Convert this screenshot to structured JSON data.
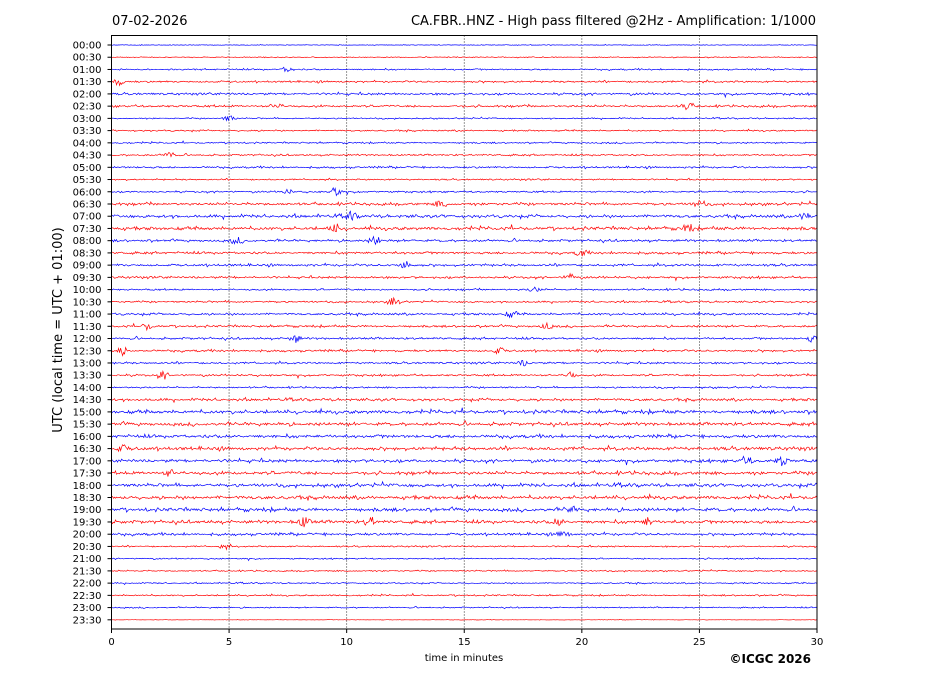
{
  "chart_data": {
    "type": "line",
    "date": "07-02-2026",
    "title": "CA.FBR..HNZ - High pass filtered @2Hz - Amplification: 1/1000",
    "ylabel": "UTC (local time = UTC + 01:00)",
    "xlabel": "time in minutes",
    "copyright": "©ICGC 2026",
    "xlim": [
      0,
      30
    ],
    "x_ticks": [
      "0",
      "5",
      "10",
      "15",
      "20",
      "25",
      "30"
    ],
    "x_tick_values": [
      0,
      5,
      10,
      15,
      20,
      25,
      30
    ],
    "grid": "vertical dotted",
    "colors": {
      "odd": "#0000ff",
      "even": "#ff0000"
    },
    "rows": [
      {
        "label": "00:00",
        "level": 0.15
      },
      {
        "label": "00:30",
        "level": 0.2
      },
      {
        "label": "01:00",
        "level": 0.35
      },
      {
        "label": "01:30",
        "level": 0.45
      },
      {
        "label": "02:00",
        "level": 0.5
      },
      {
        "label": "02:30",
        "level": 0.5
      },
      {
        "label": "03:00",
        "level": 0.3
      },
      {
        "label": "03:30",
        "level": 0.35
      },
      {
        "label": "04:00",
        "level": 0.35
      },
      {
        "label": "04:30",
        "level": 0.4
      },
      {
        "label": "05:00",
        "level": 0.45
      },
      {
        "label": "05:30",
        "level": 0.35
      },
      {
        "label": "06:00",
        "level": 0.4
      },
      {
        "label": "06:30",
        "level": 0.6
      },
      {
        "label": "07:00",
        "level": 0.7
      },
      {
        "label": "07:30",
        "level": 0.75
      },
      {
        "label": "08:00",
        "level": 0.55
      },
      {
        "label": "08:30",
        "level": 0.55
      },
      {
        "label": "09:00",
        "level": 0.55
      },
      {
        "label": "09:30",
        "level": 0.5
      },
      {
        "label": "10:00",
        "level": 0.4
      },
      {
        "label": "10:30",
        "level": 0.4
      },
      {
        "label": "11:00",
        "level": 0.5
      },
      {
        "label": "11:30",
        "level": 0.5
      },
      {
        "label": "12:00",
        "level": 0.5
      },
      {
        "label": "12:30",
        "level": 0.5
      },
      {
        "label": "13:00",
        "level": 0.45
      },
      {
        "label": "13:30",
        "level": 0.45
      },
      {
        "label": "14:00",
        "level": 0.4
      },
      {
        "label": "14:30",
        "level": 0.6
      },
      {
        "label": "15:00",
        "level": 0.8
      },
      {
        "label": "15:30",
        "level": 0.75
      },
      {
        "label": "16:00",
        "level": 0.75
      },
      {
        "label": "16:30",
        "level": 0.8
      },
      {
        "label": "17:00",
        "level": 0.7
      },
      {
        "label": "17:30",
        "level": 0.75
      },
      {
        "label": "18:00",
        "level": 0.75
      },
      {
        "label": "18:30",
        "level": 0.8
      },
      {
        "label": "19:00",
        "level": 0.8
      },
      {
        "label": "19:30",
        "level": 0.75
      },
      {
        "label": "20:00",
        "level": 0.6
      },
      {
        "label": "20:30",
        "level": 0.35
      },
      {
        "label": "21:00",
        "level": 0.3
      },
      {
        "label": "21:30",
        "level": 0.3
      },
      {
        "label": "22:00",
        "level": 0.3
      },
      {
        "label": "22:30",
        "level": 0.35
      },
      {
        "label": "23:00",
        "level": 0.3
      },
      {
        "label": "23:30",
        "level": 0.1
      }
    ],
    "events": [
      {
        "row": "01:00",
        "min": 7.5,
        "amp": 0.6
      },
      {
        "row": "01:30",
        "min": 0.3,
        "amp": 0.7
      },
      {
        "row": "02:30",
        "min": 7.0,
        "amp": 0.7
      },
      {
        "row": "02:30",
        "min": 24.5,
        "amp": 0.8
      },
      {
        "row": "03:00",
        "min": 5.0,
        "amp": 0.6
      },
      {
        "row": "04:30",
        "min": 2.5,
        "amp": 0.6
      },
      {
        "row": "06:00",
        "min": 9.5,
        "amp": 1.0
      },
      {
        "row": "06:00",
        "min": 7.5,
        "amp": 0.6
      },
      {
        "row": "06:30",
        "min": 14.0,
        "amp": 0.7
      },
      {
        "row": "06:30",
        "min": 25.0,
        "amp": 0.8
      },
      {
        "row": "07:00",
        "min": 29.5,
        "amp": 0.8
      },
      {
        "row": "07:00",
        "min": 10.2,
        "amp": 0.8
      },
      {
        "row": "07:30",
        "min": 24.5,
        "amp": 0.9
      },
      {
        "row": "07:30",
        "min": 9.5,
        "amp": 0.8
      },
      {
        "row": "08:00",
        "min": 11.2,
        "amp": 1.0
      },
      {
        "row": "08:00",
        "min": 5.3,
        "amp": 0.7
      },
      {
        "row": "08:30",
        "min": 20.0,
        "amp": 0.8
      },
      {
        "row": "09:00",
        "min": 12.5,
        "amp": 0.9
      },
      {
        "row": "09:30",
        "min": 19.5,
        "amp": 0.7
      },
      {
        "row": "10:00",
        "min": 18.0,
        "amp": 0.6
      },
      {
        "row": "10:30",
        "min": 12.0,
        "amp": 0.9
      },
      {
        "row": "11:00",
        "min": 17.0,
        "amp": 0.7
      },
      {
        "row": "11:30",
        "min": 1.5,
        "amp": 0.6
      },
      {
        "row": "11:30",
        "min": 18.5,
        "amp": 0.6
      },
      {
        "row": "12:00",
        "min": 7.8,
        "amp": 0.8
      },
      {
        "row": "12:00",
        "min": 29.8,
        "amp": 0.8
      },
      {
        "row": "12:30",
        "min": 0.5,
        "amp": 1.0
      },
      {
        "row": "12:30",
        "min": 16.5,
        "amp": 0.7
      },
      {
        "row": "13:00",
        "min": 17.5,
        "amp": 0.6
      },
      {
        "row": "13:30",
        "min": 2.2,
        "amp": 0.8
      },
      {
        "row": "13:30",
        "min": 19.5,
        "amp": 0.6
      },
      {
        "row": "16:30",
        "min": 0.5,
        "amp": 0.7
      },
      {
        "row": "17:00",
        "min": 28.5,
        "amp": 1.0
      },
      {
        "row": "17:00",
        "min": 27.0,
        "amp": 0.8
      },
      {
        "row": "17:30",
        "min": 2.5,
        "amp": 0.7
      },
      {
        "row": "19:00",
        "min": 19.5,
        "amp": 0.7
      },
      {
        "row": "19:30",
        "min": 8.2,
        "amp": 1.0
      },
      {
        "row": "19:30",
        "min": 11.0,
        "amp": 1.0
      },
      {
        "row": "19:30",
        "min": 19.0,
        "amp": 0.9
      },
      {
        "row": "19:30",
        "min": 22.8,
        "amp": 0.9
      },
      {
        "row": "20:00",
        "min": 19.2,
        "amp": 0.8
      },
      {
        "row": "20:30",
        "min": 4.8,
        "amp": 0.6
      }
    ]
  }
}
